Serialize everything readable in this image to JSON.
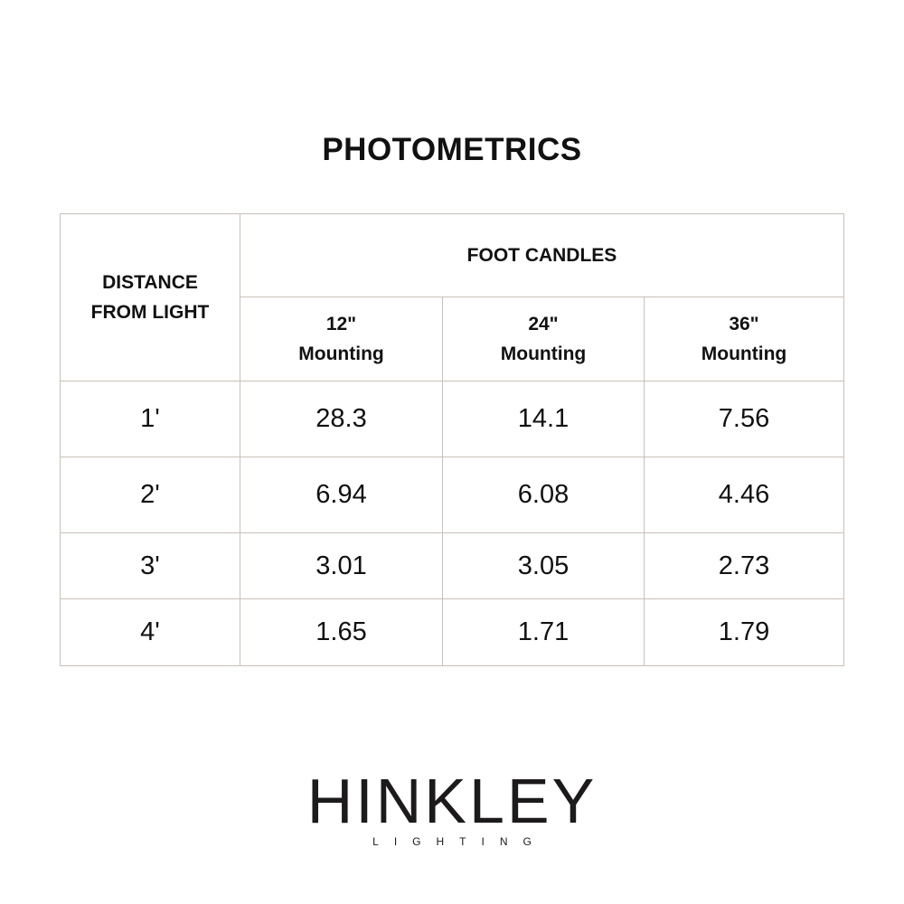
{
  "title": "PHOTOMETRICS",
  "table": {
    "row_header": "DISTANCE FROM LIGHT",
    "group_header": "FOOT CANDLES",
    "columns": [
      {
        "size": "12\"",
        "label": "Mounting"
      },
      {
        "size": "24\"",
        "label": "Mounting"
      },
      {
        "size": "36\"",
        "label": "Mounting"
      }
    ],
    "rows": [
      {
        "distance": "1'",
        "values": [
          "28.3",
          "14.1",
          "7.56"
        ]
      },
      {
        "distance": "2'",
        "values": [
          "6.94",
          "6.08",
          "4.46"
        ]
      },
      {
        "distance": "3'",
        "values": [
          "3.01",
          "3.05",
          "2.73"
        ]
      },
      {
        "distance": "4'",
        "values": [
          "1.65",
          "1.71",
          "1.79"
        ]
      }
    ]
  },
  "logo": {
    "name": "HINKLEY",
    "tagline": "LIGHTING"
  },
  "colors": {
    "border": "#c9c0b8",
    "text": "#111111"
  }
}
